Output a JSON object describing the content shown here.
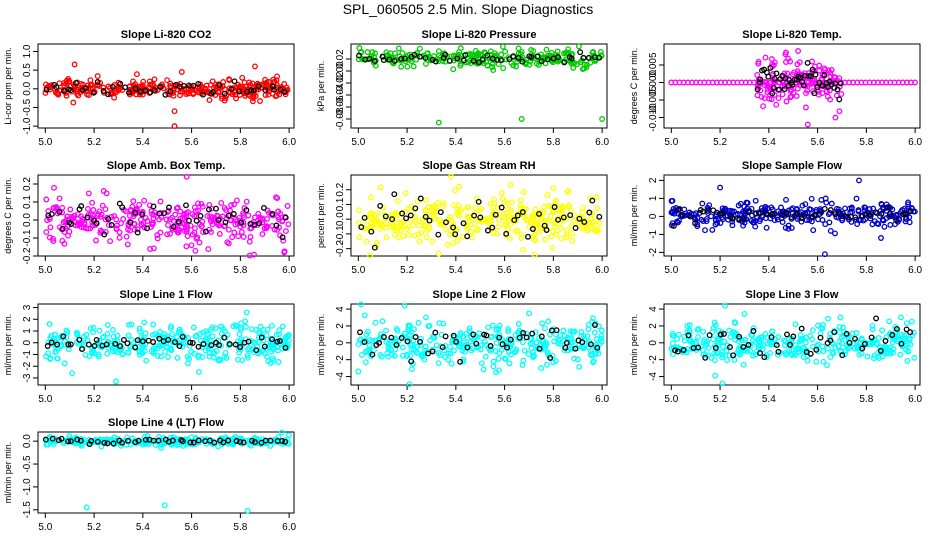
{
  "page": {
    "title": "SPL_060505  2.5 Min. Slope Diagnostics"
  },
  "colors": {
    "red": "#ff0000",
    "green": "#00cc00",
    "magenta": "#ff00ff",
    "yellow": "#ffff00",
    "blue": "#0000cc",
    "cyan": "#00ffff",
    "reference": "#000000"
  },
  "chart_data": [
    {
      "id": "co2",
      "type": "scatter",
      "title": "Slope Li-820 CO2",
      "xlabel": "",
      "ylabel": "Li-cor ppm per min.",
      "color": "red",
      "xlim": [
        4.97,
        6.02
      ],
      "ylim": [
        -1.05,
        1.2
      ],
      "xticks": [
        5.0,
        5.2,
        5.4,
        5.6,
        5.8,
        6.0
      ],
      "yticks": [
        -1.0,
        -0.5,
        0.0,
        0.5,
        1.0
      ],
      "ytick_labels": [
        "-1.0",
        "-0.5",
        "0.0",
        "0.5",
        "1.0"
      ],
      "noise": {
        "n": 300,
        "center": 0.0,
        "spread": 0.13,
        "ref_spread": 0.1
      },
      "outliers": [
        [
          5.53,
          -1.0
        ],
        [
          5.53,
          -0.6
        ],
        [
          5.12,
          0.65
        ],
        [
          5.86,
          0.6
        ],
        [
          5.56,
          0.45
        ]
      ]
    },
    {
      "id": "pressure",
      "type": "scatter",
      "title": "Slope Li-820 Pressure",
      "xlabel": "",
      "ylabel": "kPa per min.",
      "color": "green",
      "xlim": [
        4.97,
        6.02
      ],
      "ylim": [
        -0.095,
        0.045
      ],
      "xticks": [
        5.0,
        5.2,
        5.4,
        5.6,
        5.8,
        6.0
      ],
      "yticks": [
        -0.08,
        -0.06,
        -0.04,
        -0.02,
        0.0,
        0.02
      ],
      "ytick_labels": [
        "-0.08",
        "-0.06",
        "-0.04",
        "-0.02",
        "0.00",
        "0.02"
      ],
      "noise": {
        "n": 250,
        "center": 0.022,
        "spread": 0.008,
        "ref_spread": 0.003
      },
      "outliers": [
        [
          5.33,
          -0.086
        ],
        [
          5.67,
          -0.08
        ],
        [
          6.0,
          -0.08
        ]
      ]
    },
    {
      "id": "temp",
      "type": "scatter",
      "title": "Slope Li-820 Temp.",
      "xlabel": "",
      "ylabel": "degrees C per min.",
      "color": "magenta",
      "xlim": [
        4.97,
        6.02
      ],
      "ylim": [
        -0.013,
        0.011
      ],
      "xticks": [
        5.0,
        5.2,
        5.4,
        5.6,
        5.8,
        6.0
      ],
      "yticks": [
        -0.01,
        -0.005,
        0.0,
        0.005
      ],
      "ytick_labels": [
        "-0.010",
        "-0.005",
        "0.000",
        "0.005"
      ],
      "noise": {
        "n": 150,
        "center": 0.0,
        "spread": 0.0035,
        "ref_spread": 0.002,
        "x_range": [
          5.35,
          5.7
        ]
      },
      "baseline": {
        "y": 0.0,
        "n": 60,
        "x_range": [
          5.0,
          6.0
        ]
      },
      "outliers": [
        [
          5.52,
          0.009
        ],
        [
          5.56,
          -0.012
        ]
      ]
    },
    {
      "id": "amb",
      "type": "scatter",
      "title": "Slope Amb. Box Temp.",
      "xlabel": "",
      "ylabel": "degrees C per min.",
      "color": "magenta",
      "xlim": [
        4.97,
        6.02
      ],
      "ylim": [
        -0.2,
        0.25
      ],
      "xticks": [
        5.0,
        5.2,
        5.4,
        5.6,
        5.8,
        6.0
      ],
      "yticks": [
        -0.2,
        -0.1,
        0.0,
        0.1,
        0.2
      ],
      "ytick_labels": [
        "-0.2",
        "-0.1",
        "0.0",
        "0.1",
        "0.2"
      ],
      "noise": {
        "n": 330,
        "center": 0.0,
        "spread": 0.065,
        "ref_spread": 0.05
      },
      "outliers": [
        [
          5.58,
          0.24
        ],
        [
          5.98,
          -0.18
        ]
      ]
    },
    {
      "id": "rh",
      "type": "scatter",
      "title": "Slope Gas Stream RH",
      "xlabel": "",
      "ylabel": "percent per min.",
      "color": "yellow",
      "xlim": [
        4.97,
        6.02
      ],
      "ylim": [
        -0.25,
        0.3
      ],
      "xticks": [
        5.0,
        5.2,
        5.4,
        5.6,
        5.8,
        6.0
      ],
      "yticks": [
        -0.2,
        -0.1,
        0.0,
        0.1,
        0.2
      ],
      "ytick_labels": [
        "-0.2",
        "-0.1",
        "0.0",
        "0.1",
        "0.2"
      ],
      "noise": {
        "n": 330,
        "center": 0.0,
        "spread": 0.085,
        "ref_spread": 0.075
      },
      "outliers": [
        [
          5.38,
          0.29
        ],
        [
          5.8,
          0.21
        ]
      ]
    },
    {
      "id": "sample",
      "type": "scatter",
      "title": "Slope Sample Flow",
      "xlabel": "",
      "ylabel": "ml/min per min.",
      "color": "blue",
      "xlim": [
        4.97,
        6.02
      ],
      "ylim": [
        -2.2,
        2.3
      ],
      "xticks": [
        5.0,
        5.2,
        5.4,
        5.6,
        5.8,
        6.0
      ],
      "yticks": [
        -2,
        -1,
        0,
        1,
        2
      ],
      "ytick_labels": [
        "-2",
        "-1",
        "0",
        "1",
        "2"
      ],
      "noise": {
        "n": 300,
        "center": 0.1,
        "spread": 0.35,
        "ref_spread": 0.2
      },
      "outliers": [
        [
          5.77,
          2.0
        ],
        [
          5.2,
          1.6
        ],
        [
          5.63,
          -2.1
        ],
        [
          5.86,
          -1.2
        ]
      ]
    },
    {
      "id": "line1",
      "type": "scatter",
      "title": "Slope Line 1 Flow",
      "xlabel": "",
      "ylabel": "ml/min per min.",
      "color": "cyan",
      "xlim": [
        4.97,
        6.02
      ],
      "ylim": [
        -3.6,
        3.3
      ],
      "xticks": [
        5.0,
        5.2,
        5.4,
        5.6,
        5.8,
        6.0
      ],
      "yticks": [
        -3,
        -2,
        -1,
        0,
        1,
        2,
        3
      ],
      "ytick_labels": [
        "-3",
        "-2",
        "-1",
        "0",
        "1",
        "2",
        "3"
      ],
      "noise": {
        "n": 330,
        "center": 0.0,
        "spread": 0.85,
        "ref_spread": 0.3
      },
      "outliers": [
        [
          5.29,
          -3.3
        ],
        [
          5.11,
          -2.6
        ],
        [
          5.63,
          -2.5
        ]
      ]
    },
    {
      "id": "line2",
      "type": "scatter",
      "title": "Slope Line 2 Flow",
      "xlabel": "",
      "ylabel": "ml/min per min.",
      "color": "cyan",
      "xlim": [
        4.97,
        6.02
      ],
      "ylim": [
        -5.0,
        4.6
      ],
      "xticks": [
        5.0,
        5.2,
        5.4,
        5.6,
        5.8,
        6.0
      ],
      "yticks": [
        -4,
        -2,
        0,
        2,
        4
      ],
      "ytick_labels": [
        "-4",
        "-2",
        "0",
        "2",
        "4"
      ],
      "noise": {
        "n": 330,
        "center": 0.0,
        "spread": 1.25,
        "ref_spread": 1.0
      },
      "outliers": [
        [
          5.21,
          -4.9
        ],
        [
          5.19,
          4.4
        ],
        [
          5.0,
          -3.4
        ],
        [
          5.75,
          -3.0
        ]
      ]
    },
    {
      "id": "line3",
      "type": "scatter",
      "title": "Slope Line 3 Flow",
      "xlabel": "",
      "ylabel": "ml/min per min.",
      "color": "cyan",
      "xlim": [
        4.97,
        6.02
      ],
      "ylim": [
        -5.0,
        4.6
      ],
      "xticks": [
        5.0,
        5.2,
        5.4,
        5.6,
        5.8,
        6.0
      ],
      "yticks": [
        -4,
        -2,
        0,
        2,
        4
      ],
      "ytick_labels": [
        "-4",
        "-2",
        "0",
        "2",
        "4"
      ],
      "noise": {
        "n": 330,
        "center": 0.0,
        "spread": 1.1,
        "ref_spread": 1.0
      },
      "outliers": [
        [
          5.21,
          -4.8
        ],
        [
          5.22,
          4.4
        ],
        [
          5.18,
          -3.9
        ]
      ]
    },
    {
      "id": "line4",
      "type": "scatter",
      "title": "Slope Line 4 (LT) Flow",
      "xlabel": "",
      "ylabel": "ml/min per min.",
      "color": "cyan",
      "xlim": [
        4.97,
        6.02
      ],
      "ylim": [
        -1.57,
        0.2
      ],
      "xticks": [
        5.0,
        5.2,
        5.4,
        5.6,
        5.8,
        6.0
      ],
      "yticks": [
        -1.5,
        -1.0,
        -0.5,
        0.0
      ],
      "ytick_labels": [
        "-1.5",
        "-1.0",
        "-0.5",
        "0.0"
      ],
      "noise": {
        "n": 300,
        "center": 0.0,
        "spread": 0.045,
        "ref_spread": 0.03
      },
      "outliers": [
        [
          5.17,
          -1.45
        ],
        [
          5.49,
          -1.4
        ],
        [
          5.83,
          -1.52
        ]
      ]
    }
  ]
}
